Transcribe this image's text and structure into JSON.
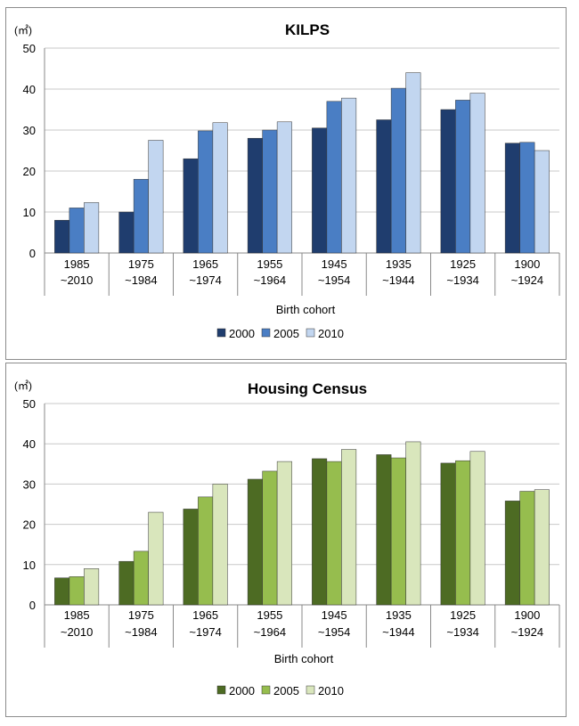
{
  "chart_data": [
    {
      "type": "bar",
      "title": "KILPS",
      "unit_label": "(㎡)",
      "xlabel": "Birth cohort",
      "ylabel": "",
      "ylim": [
        0,
        50
      ],
      "yticks": [
        0,
        10,
        20,
        30,
        40,
        50
      ],
      "grid": true,
      "legend_position": "bottom",
      "categories": [
        {
          "line1": "1985",
          "line2": "~2010"
        },
        {
          "line1": "1975",
          "line2": "~1984"
        },
        {
          "line1": "1965",
          "line2": "~1974"
        },
        {
          "line1": "1955",
          "line2": "~1964"
        },
        {
          "line1": "1945",
          "line2": "~1954"
        },
        {
          "line1": "1935",
          "line2": "~1944"
        },
        {
          "line1": "1925",
          "line2": "~1934"
        },
        {
          "line1": "1900",
          "line2": "~1924"
        }
      ],
      "series": [
        {
          "name": "2000",
          "color": "#1f3d6e",
          "values": [
            8.0,
            10.0,
            23.0,
            28.0,
            30.5,
            32.5,
            35.0,
            26.8
          ]
        },
        {
          "name": "2005",
          "color": "#4a7ec4",
          "values": [
            11.0,
            18.0,
            29.8,
            30.0,
            37.0,
            40.2,
            37.3,
            27.0
          ]
        },
        {
          "name": "2010",
          "color": "#c2d6f0",
          "values": [
            12.3,
            27.5,
            31.8,
            32.0,
            37.8,
            44.0,
            39.0,
            25.0
          ]
        }
      ]
    },
    {
      "type": "bar",
      "title": "Housing Census",
      "unit_label": "(㎡)",
      "xlabel": "Birth cohort",
      "ylabel": "",
      "ylim": [
        0,
        50
      ],
      "yticks": [
        0,
        10,
        20,
        30,
        40,
        50
      ],
      "grid": true,
      "legend_position": "bottom",
      "categories": [
        {
          "line1": "1985",
          "line2": "~2010"
        },
        {
          "line1": "1975",
          "line2": "~1984"
        },
        {
          "line1": "1965",
          "line2": "~1974"
        },
        {
          "line1": "1955",
          "line2": "~1964"
        },
        {
          "line1": "1945",
          "line2": "~1954"
        },
        {
          "line1": "1935",
          "line2": "~1944"
        },
        {
          "line1": "1925",
          "line2": "~1934"
        },
        {
          "line1": "1900",
          "line2": "~1924"
        }
      ],
      "series": [
        {
          "name": "2000",
          "color": "#4d6b23",
          "values": [
            6.7,
            10.8,
            23.8,
            31.2,
            36.3,
            37.3,
            35.2,
            25.8
          ]
        },
        {
          "name": "2005",
          "color": "#96bd4e",
          "values": [
            7.0,
            13.3,
            26.8,
            33.2,
            35.6,
            36.5,
            35.8,
            28.2
          ]
        },
        {
          "name": "2010",
          "color": "#d9e6bc",
          "values": [
            9.0,
            23.0,
            30.0,
            35.6,
            38.6,
            40.5,
            38.1,
            28.6
          ]
        }
      ]
    }
  ]
}
